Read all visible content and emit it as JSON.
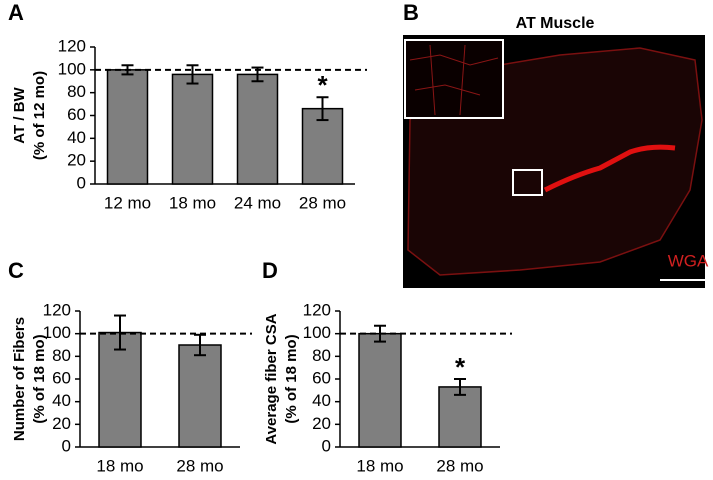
{
  "chart_data": [
    {
      "type": "bar",
      "panel": "A",
      "ylabel": [
        "AT / BW",
        "(% of 12 mo)"
      ],
      "categories": [
        "12 mo",
        "18 mo",
        "24 mo",
        "28 mo"
      ],
      "values": [
        100,
        96,
        96,
        66
      ],
      "errors": [
        4,
        8,
        6,
        10
      ],
      "color": "#7f7f7f",
      "ylim": [
        0,
        120
      ],
      "yticks": [
        0,
        20,
        40,
        60,
        80,
        100,
        120
      ],
      "reference_line": 100,
      "annotations": [
        {
          "text": "*",
          "category": "28 mo"
        }
      ]
    },
    {
      "type": "bar",
      "panel": "C",
      "ylabel": [
        "Number of Fibers",
        "(% of 18 mo)"
      ],
      "categories": [
        "18 mo",
        "28 mo"
      ],
      "values": [
        101,
        90
      ],
      "errors": [
        15,
        9
      ],
      "color": "#7f7f7f",
      "ylim": [
        0,
        120
      ],
      "yticks": [
        0,
        20,
        40,
        60,
        80,
        100,
        120
      ],
      "reference_line": 100,
      "annotations": []
    },
    {
      "type": "bar",
      "panel": "D",
      "ylabel": [
        "Average fiber CSA",
        "(% of 18 mo)"
      ],
      "categories": [
        "18 mo",
        "28 mo"
      ],
      "values": [
        100,
        53
      ],
      "errors": [
        7,
        7
      ],
      "color": "#7f7f7f",
      "ylim": [
        0,
        120
      ],
      "yticks": [
        0,
        20,
        40,
        60,
        80,
        100,
        120
      ],
      "reference_line": 100,
      "annotations": [
        {
          "text": "*",
          "category": "28 mo"
        }
      ]
    }
  ],
  "image_panel": {
    "panel": "B",
    "title": "AT Muscle",
    "stain": "WGA"
  }
}
